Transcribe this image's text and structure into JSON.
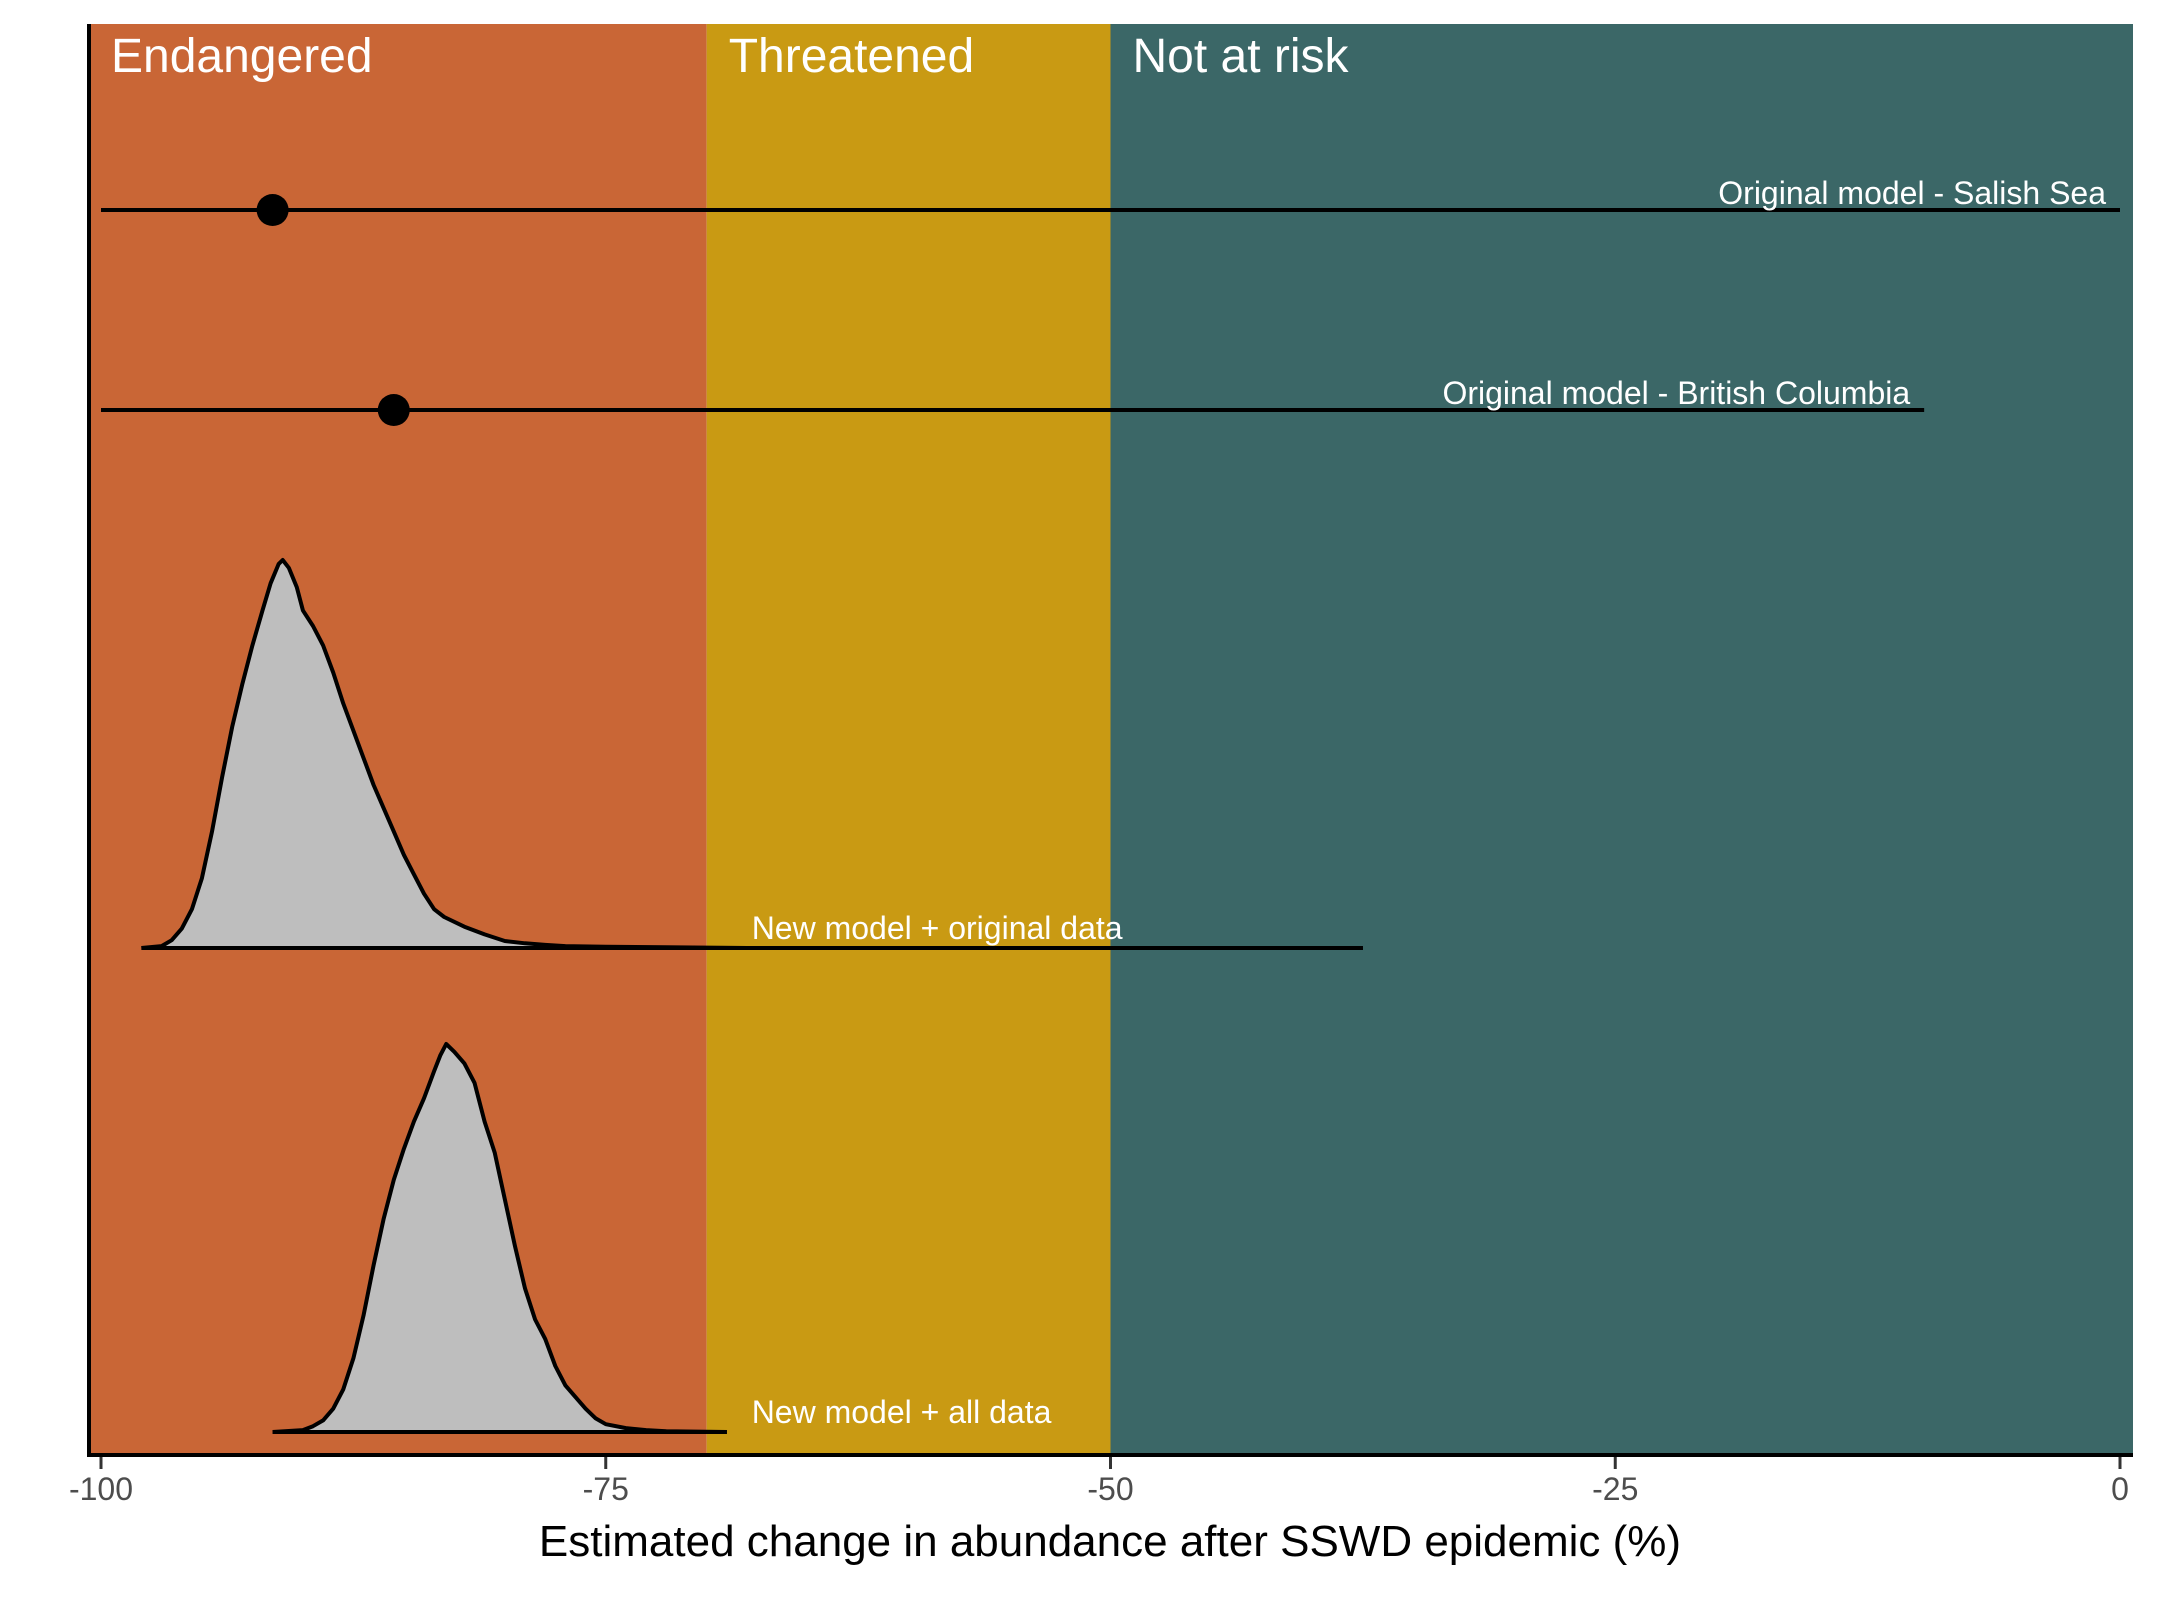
{
  "chart_data": {
    "type": "interval-and-density",
    "xlabel": "Estimated change in abundance after SSWD epidemic (%)",
    "xlim": [
      -101,
      0.7
    ],
    "x_ticks": [
      -100,
      -75,
      -50,
      -25,
      0
    ],
    "x_tick_labels": [
      "-100",
      "-75",
      "-50",
      "-25",
      "0"
    ],
    "grid": false,
    "zones": [
      {
        "label": "Endangered",
        "from": -101,
        "to": -70,
        "color": "#C96636"
      },
      {
        "label": "Threatened",
        "from": -70,
        "to": -50,
        "color": "#C99A13"
      },
      {
        "label": "Not at risk",
        "from": -50,
        "to": 0.7,
        "color": "#3B6767"
      }
    ],
    "intervals": [
      {
        "label": "Original model - Salish Sea",
        "point": -91.5,
        "low": -100,
        "high": 0
      },
      {
        "label": "Original model - British Columbia",
        "point": -85.5,
        "low": -100,
        "high": -9.7
      }
    ],
    "densities": [
      {
        "label": "New model + original data",
        "line_low": -98,
        "line_high": -37.5,
        "curve": [
          [
            -98,
            0
          ],
          [
            -97,
            0.005
          ],
          [
            -96.5,
            0.02
          ],
          [
            -96,
            0.05
          ],
          [
            -95.5,
            0.1
          ],
          [
            -95,
            0.18
          ],
          [
            -94.5,
            0.3
          ],
          [
            -94,
            0.44
          ],
          [
            -93.5,
            0.57
          ],
          [
            -93,
            0.68
          ],
          [
            -92.5,
            0.78
          ],
          [
            -92,
            0.87
          ],
          [
            -91.6,
            0.94
          ],
          [
            -91.2,
            0.99
          ],
          [
            -91,
            1.0
          ],
          [
            -90.7,
            0.98
          ],
          [
            -90.3,
            0.93
          ],
          [
            -90,
            0.87
          ],
          [
            -89.5,
            0.83
          ],
          [
            -89,
            0.78
          ],
          [
            -88.5,
            0.71
          ],
          [
            -88,
            0.63
          ],
          [
            -87.5,
            0.56
          ],
          [
            -87,
            0.49
          ],
          [
            -86.5,
            0.42
          ],
          [
            -86,
            0.36
          ],
          [
            -85.5,
            0.3
          ],
          [
            -85,
            0.24
          ],
          [
            -84.5,
            0.19
          ],
          [
            -84,
            0.14
          ],
          [
            -83.5,
            0.1
          ],
          [
            -83,
            0.08
          ],
          [
            -82,
            0.055
          ],
          [
            -81,
            0.035
          ],
          [
            -80,
            0.018
          ],
          [
            -79,
            0.012
          ],
          [
            -78,
            0.008
          ],
          [
            -77,
            0.005
          ],
          [
            -75,
            0.003
          ],
          [
            -72,
            0.002
          ],
          [
            -70,
            0.001
          ],
          [
            -68,
            0
          ],
          [
            -37.5,
            0
          ]
        ]
      },
      {
        "label": "New model + all data",
        "line_low": -91.5,
        "line_high": -69,
        "curve": [
          [
            -91.5,
            0
          ],
          [
            -90,
            0.005
          ],
          [
            -89.5,
            0.015
          ],
          [
            -89,
            0.03
          ],
          [
            -88.5,
            0.06
          ],
          [
            -88,
            0.11
          ],
          [
            -87.5,
            0.19
          ],
          [
            -87,
            0.3
          ],
          [
            -86.5,
            0.43
          ],
          [
            -86,
            0.55
          ],
          [
            -85.5,
            0.65
          ],
          [
            -85,
            0.73
          ],
          [
            -84.5,
            0.8
          ],
          [
            -84,
            0.86
          ],
          [
            -83.5,
            0.93
          ],
          [
            -83.2,
            0.97
          ],
          [
            -82.9,
            1.0
          ],
          [
            -82.5,
            0.98
          ],
          [
            -82,
            0.95
          ],
          [
            -81.5,
            0.9
          ],
          [
            -81,
            0.8
          ],
          [
            -80.5,
            0.72
          ],
          [
            -80,
            0.6
          ],
          [
            -79.5,
            0.48
          ],
          [
            -79,
            0.37
          ],
          [
            -78.5,
            0.29
          ],
          [
            -78,
            0.24
          ],
          [
            -77.5,
            0.17
          ],
          [
            -77,
            0.12
          ],
          [
            -76.5,
            0.09
          ],
          [
            -76,
            0.06
          ],
          [
            -75.5,
            0.035
          ],
          [
            -75,
            0.02
          ],
          [
            -74,
            0.01
          ],
          [
            -73,
            0.005
          ],
          [
            -72,
            0.002
          ],
          [
            -69,
            0
          ]
        ]
      }
    ]
  },
  "colors": {
    "density_fill": "#BEBEBE",
    "line": "#000000",
    "zone_text": "#FFFFFF"
  }
}
